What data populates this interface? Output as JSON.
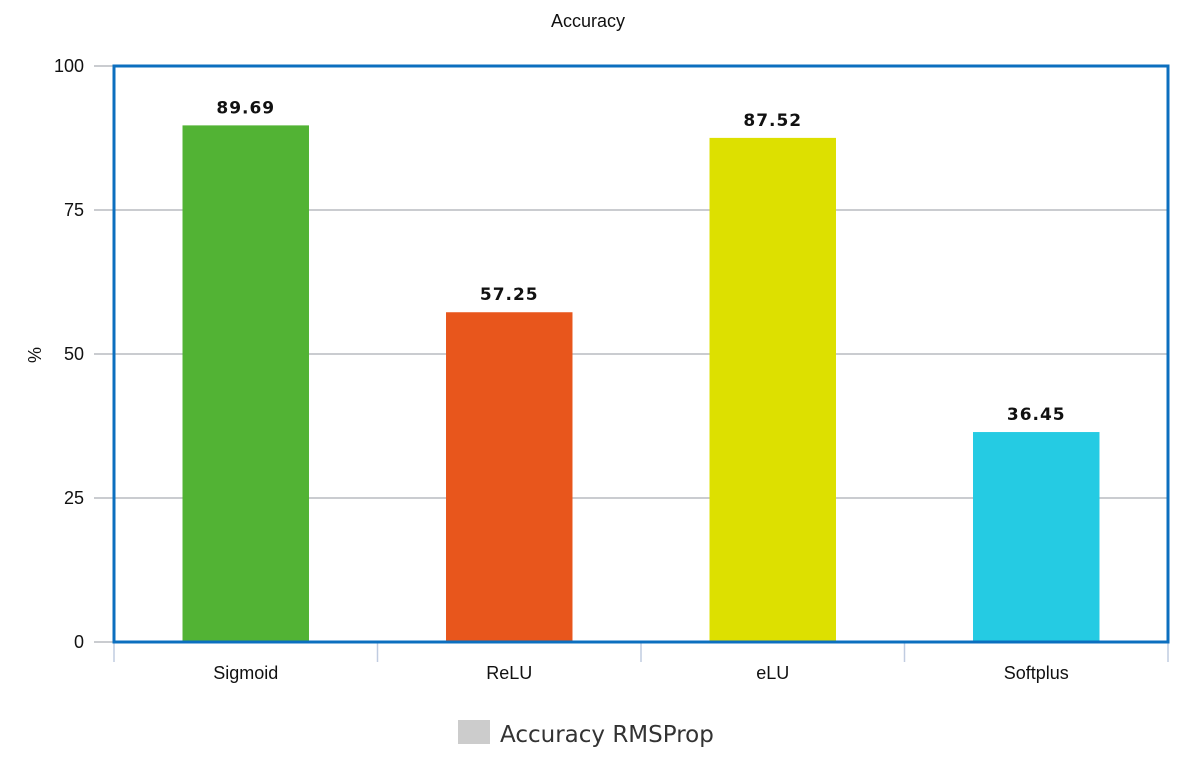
{
  "chart_data": {
    "type": "bar",
    "title": "Accuracy",
    "ylabel": "%",
    "xlabel": "",
    "categories": [
      "Sigmoid",
      "ReLU",
      "eLU",
      "Softplus"
    ],
    "series": [
      {
        "name": "Accuracy RMSProp",
        "values": [
          89.69,
          57.25,
          87.52,
          36.45
        ],
        "value_labels": [
          "89.69",
          "57.25",
          "87.52",
          "36.45"
        ],
        "colors": [
          "#52b334",
          "#e8561c",
          "#dde000",
          "#25cbe3"
        ]
      }
    ],
    "ylim": [
      0,
      100
    ],
    "yticks": [
      0,
      25,
      50,
      75,
      100
    ],
    "ytick_labels": [
      "0",
      "25",
      "50",
      "75",
      "100"
    ],
    "grid": true,
    "legend_position": "bottom-center",
    "legend_swatch_color": "#cccccc",
    "frame_color": "#0c6fbf",
    "grid_color": "#b8bcc0"
  }
}
